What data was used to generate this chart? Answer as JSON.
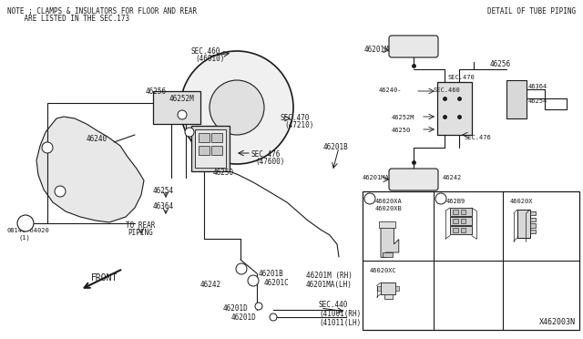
{
  "bg_color": "#ffffff",
  "line_color": "#1a1a1a",
  "note_line1": "NOTE ; CLAMPS & INSULATORS FOR FLOOR AND REAR",
  "note_line2": "    ARE LISTED IN THE SEC.173",
  "detail_title": "DETAIL OF TUBE PIPING",
  "diagram_id": "X462003N",
  "figsize": [
    6.4,
    3.72
  ],
  "dpi": 100
}
